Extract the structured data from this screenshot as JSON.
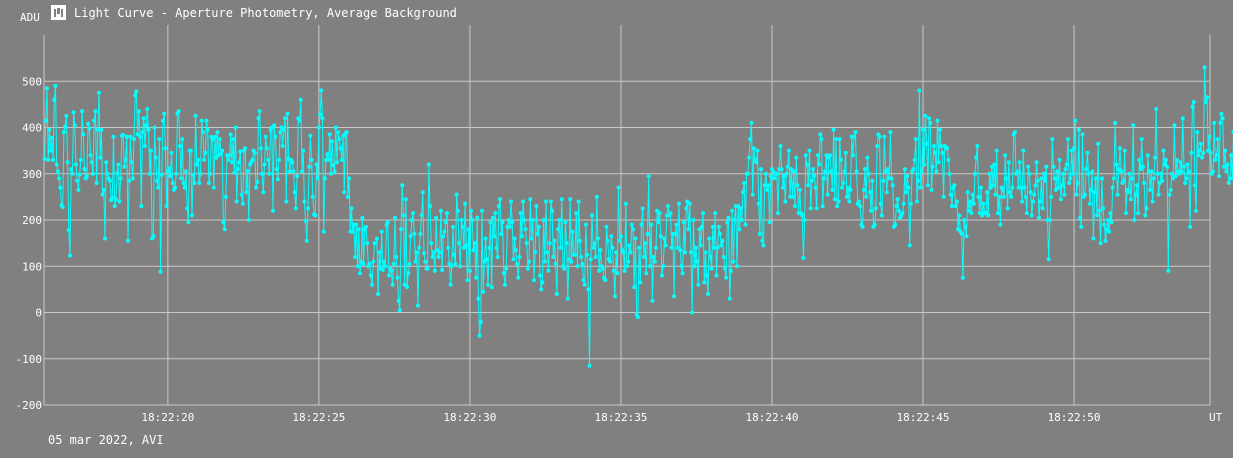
{
  "window": {
    "title": "Light Curve - Aperture Photometry, Average Background",
    "icon": "chart-window-icon",
    "footer": "05 mar 2022, AVI"
  },
  "colors": {
    "background": "#808080",
    "grid": "#c8c8c8",
    "series": "#00ffff",
    "text": "#ffffff"
  },
  "chart_data": {
    "type": "line",
    "ylabel": "ADU",
    "xlabel": "UT",
    "ylim": [
      -200,
      600
    ],
    "yticks": [
      -200,
      -100,
      0,
      100,
      200,
      300,
      400,
      500
    ],
    "xlim_seconds": [
      15.9,
      54.5
    ],
    "xticks": [
      {
        "s": 20,
        "label": "18:22:20"
      },
      {
        "s": 25,
        "label": "18:22:25"
      },
      {
        "s": 30,
        "label": "18:22:30"
      },
      {
        "s": 35,
        "label": "18:22:35"
      },
      {
        "s": 40,
        "label": "18:22:40"
      },
      {
        "s": 45,
        "label": "18:22:45"
      },
      {
        "s": 50,
        "label": "18:22:50"
      }
    ],
    "grid": true,
    "markers": true,
    "series": [
      {
        "x_start_s": 15.92,
        "x_step_s": 0.04,
        "values": [
          332,
          415,
          485,
          330,
          395,
          350,
          378,
          330,
          460,
          490,
          320,
          305,
          290,
          270,
          232,
          228,
          390,
          402,
          425,
          325,
          178,
          123,
          310,
          300,
          433,
          405,
          320,
          285,
          265,
          298,
          330,
          435,
          385,
          310,
          290,
          295,
          408,
          398,
          340,
          325,
          300,
          415,
          435,
          280,
          395,
          475,
          335,
          395,
          255,
          265,
          160,
          325,
          300,
          290,
          285,
          243,
          248,
          380,
          230,
          245,
          301,
          320,
          240,
          290,
          382,
          384,
          315,
          330,
          380,
          155,
          285,
          380,
          325,
          290,
          375,
          470,
          478,
          385,
          435,
          380,
          230,
          390,
          420,
          360,
          405,
          440,
          395,
          300,
          350,
          160,
          165,
          400,
          335,
          285,
          270,
          375,
          88,
          298,
          415,
          430,
          355,
          230,
          305,
          312,
          295,
          345,
          280,
          265,
          270,
          300,
          430,
          435,
          360,
          290,
          375,
          280,
          270,
          305,
          225,
          195,
          350,
          350,
          210,
          298,
          280,
          425,
          320,
          330,
          280,
          300,
          415,
          390,
          330,
          345,
          415,
          395,
          280,
          300,
          380,
          375,
          270,
          380,
          335,
          390,
          340,
          375,
          343,
          350,
          195,
          180,
          250,
          340,
          330,
          340,
          385,
          325,
          375,
          302,
          400,
          240,
          310,
          325,
          348,
          255,
          235,
          350,
          355,
          260,
          306,
          200,
          320,
          325,
          330,
          350,
          345,
          270,
          282,
          420,
          435,
          355,
          300,
          260,
          320,
          380,
          355,
          330,
          300,
          395,
          400,
          220,
          405,
          380,
          310,
          288,
          330,
          390,
          400,
          360,
          395,
          420,
          240,
          430,
          332,
          305,
          330,
          325,
          305,
          260,
          225,
          295,
          420,
          415,
          460,
          305,
          350,
          240,
          198,
          155,
          225,
          315,
          382,
          330,
          250,
          212,
          210,
          320,
          290,
          400,
          428,
          480,
          420,
          175,
          290,
          330,
          342,
          330,
          385,
          300,
          370,
          318,
          305,
          400,
          325,
          390,
          375,
          355,
          330,
          382,
          260,
          388,
          390,
          250,
          290,
          175,
          225,
          175,
          190,
          120,
          190,
          100,
          180,
          85,
          110,
          205,
          105,
          180,
          185,
          150,
          100,
          105,
          80,
          60,
          110,
          150,
          150,
          160,
          40,
          130,
          95,
          175,
          92,
          110,
          100,
          190,
          195,
          80,
          95,
          90,
          60,
          105,
          205,
          120,
          75,
          25,
          5,
          180,
          275,
          210,
          60,
          245,
          55,
          85,
          105,
          165,
          200,
          215,
          170,
          110,
          130,
          15,
          140,
          170,
          210,
          260,
          128,
          110,
          95,
          95,
          320,
          230,
          150,
          120,
          130,
          90,
          205,
          135,
          120,
          130,
          220,
          92,
          165,
          175,
          195,
          215,
          140,
          105,
          60,
          100,
          185,
          125,
          105,
          255,
          220,
          150,
          100,
          200,
          185,
          140,
          235,
          145,
          70,
          180,
          90,
          220,
          200,
          135,
          150,
          75,
          205,
          30,
          -50,
          -20,
          220,
          45,
          110,
          160,
          115,
          60,
          140,
          195,
          55,
          205,
          165,
          215,
          140,
          120,
          230,
          245,
          170,
          195,
          85,
          60,
          95,
          185,
          200,
          185,
          240,
          195,
          115,
          160,
          135,
          105,
          75,
          120,
          215,
          165,
          240,
          200,
          180,
          150,
          95,
          110,
          245,
          160,
          200,
          70,
          130,
          230,
          170,
          185,
          80,
          50,
          65,
          200,
          110,
          240,
          130,
          90,
          150,
          240,
          220,
          120,
          155,
          105,
          40,
          180,
          200,
          140,
          245,
          100,
          95,
          195,
          150,
          30,
          115,
          245,
          110,
          175,
          125,
          125,
          215,
          100,
          240,
          155,
          120,
          105,
          70,
          60,
          190,
          125,
          50,
          -115,
          115,
          210,
          140,
          150,
          120,
          250,
          160,
          90,
          135,
          100,
          95,
          75,
          70,
          185,
          155,
          115,
          110,
          165,
          140,
          90,
          35,
          130,
          85,
          270,
          155,
          165,
          135,
          130,
          90,
          235,
          100,
          110,
          145,
          130,
          190,
          180,
          55,
          160,
          -5,
          -10,
          140,
          65,
          190,
          225,
          120,
          150,
          85,
          170,
          295,
          100,
          190,
          25,
          120,
          110,
          140,
          220,
          195,
          215,
          165,
          80,
          100,
          160,
          145,
          210,
          230,
          210,
          215,
          140,
          170,
          35,
          170,
          190,
          140,
          235,
          135,
          100,
          85,
          195,
          130,
          225,
          240,
          180,
          235,
          130,
          0,
          200,
          100,
          140,
          110,
          60,
          180,
          145,
          185,
          215,
          65,
          130,
          80,
          40,
          160,
          120,
          95,
          185,
          140,
          215,
          80,
          140,
          185,
          170,
          145,
          155,
          120,
          95,
          75,
          195,
          205,
          30,
          90,
          220,
          110,
          200,
          230,
          100,
          230,
          180,
          225,
          200,
          260,
          280,
          190,
          300,
          300,
          335,
          375,
          410,
          255,
          355,
          330,
          325,
          350,
          235,
          170,
          310,
          155,
          145,
          275,
          300,
          265,
          275,
          195,
          295,
          310,
          305,
          290,
          300,
          300,
          215,
          310,
          360,
          310,
          270,
          295,
          240,
          300,
          315,
          350,
          250,
          310,
          250,
          305,
          230,
          335,
          275,
          215,
          265,
          215,
          210,
          118,
          200,
          340,
          320,
          275,
          350,
          225,
          285,
          310,
          295,
          270,
          225,
          340,
          320,
          385,
          375,
          230,
          290,
          305,
          340,
          255,
          335,
          340,
          305,
          265,
          395,
          245,
          375,
          230,
          240,
          375,
          330,
          270,
          280,
          305,
          345,
          250,
          270,
          240,
          265,
          380,
          340,
          380,
          390,
          305,
          235,
          240,
          230,
          190,
          185,
          265,
          310,
          250,
          335,
          300,
          260,
          220,
          285,
          185,
          190,
          225,
          360,
          385,
          380,
          235,
          210,
          285,
          380,
          305,
          260,
          310,
          290,
          390,
          290,
          275,
          185,
          190,
          230,
          245,
          220,
          205,
          210,
          215,
          235,
          310,
          260,
          295,
          270,
          145,
          235,
          305,
          310,
          330,
          375,
          240,
          285,
          480,
          270,
          305,
          395,
          320,
          425,
          365,
          275,
          420,
          410,
          265,
          315,
          360,
          345,
          305,
          415,
          325,
          395,
          360,
          345,
          250,
          360,
          355,
          355,
          330,
          300,
          255,
          230,
          270,
          275,
          230,
          240,
          180,
          210,
          175,
          170,
          75,
          200,
          185,
          165,
          260,
          220,
          240,
          215,
          255,
          235,
          300,
          335,
          360,
          250,
          215,
          270,
          210,
          235,
          215,
          215,
          260,
          210,
          300,
          270,
          315,
          275,
          320,
          255,
          350,
          215,
          250,
          190,
          270,
          265,
          250,
          340,
          290,
          225,
          325,
          260,
          250,
          270,
          385,
          390,
          300,
          305,
          270,
          325,
          270,
          240,
          350,
          270,
          250,
          215,
          315,
          300,
          260,
          210,
          240,
          255,
          275,
          325,
          285,
          205,
          240,
          290,
          225,
          300,
          285,
          315,
          200,
          115,
          200,
          250,
          375,
          315,
          290,
          265,
          305,
          270,
          330,
          245,
          275,
          300,
          255,
          310,
          320,
          375,
          280,
          290,
          350,
          300,
          355,
          415,
          255,
          280,
          395,
          205,
          185,
          385,
          250,
          255,
          310,
          345,
          300,
          235,
          265,
          305,
          160,
          260,
          290,
          210,
          365,
          220,
          150,
          290,
          225,
          190,
          155,
          180,
          200,
          175,
          215,
          195,
          270,
          290,
          410,
          320,
          255,
          310,
          355,
          305,
          280,
          285,
          350,
          215,
          265,
          260,
          300,
          245,
          290,
          405,
          200,
          255,
          275,
          215,
          330,
          310,
          375,
          315,
          280,
          210,
          225,
          340,
          305,
          265,
          305,
          240,
          290,
          335,
          440,
          300,
          255,
          280,
          300,
          285,
          350,
          320,
          330,
          315,
          90,
          255,
          265,
          300,
          290,
          405,
          295,
          330,
          305,
          300,
          325,
          305,
          420,
          315,
          280,
          290,
          320,
          305,
          185,
          345,
          445,
          455,
          275,
          220,
          390,
          340,
          350,
          365,
          335,
          345,
          530,
          455,
          465,
          350,
          380,
          345,
          300,
          305,
          410,
          330,
          340,
          375,
          295,
          410,
          430,
          420,
          315,
          350,
          305,
          320,
          280,
          290,
          340,
          290,
          390,
          220,
          325,
          380,
          285,
          400,
          210,
          85,
          225,
          260,
          330,
          280,
          330,
          210,
          70,
          140,
          300,
          320,
          255,
          405,
          395,
          325,
          260,
          195,
          305,
          240,
          290,
          375,
          290,
          210,
          265,
          300,
          290,
          295,
          310,
          255,
          375,
          280,
          330,
          225,
          110,
          350,
          420,
          400,
          425,
          410,
          440,
          420,
          220,
          345,
          290,
          400,
          175,
          385,
          330,
          280,
          285,
          290,
          405,
          195,
          310,
          235,
          280,
          295,
          225,
          200,
          300,
          170,
          220,
          335,
          290,
          420,
          215,
          185,
          360,
          340,
          385,
          440,
          380,
          400,
          420,
          445,
          265,
          310,
          300,
          340,
          310,
          365,
          300,
          265,
          290,
          275,
          300,
          255,
          345,
          340,
          380,
          295,
          310,
          190,
          190,
          270,
          310,
          275,
          255,
          370,
          320,
          240,
          335,
          435,
          215,
          290,
          320,
          285,
          280,
          305,
          330,
          360,
          345,
          320,
          300,
          245,
          355,
          205,
          110,
          195,
          285,
          330,
          350,
          315,
          300,
          275,
          250,
          305,
          120,
          270,
          260,
          310,
          250,
          250,
          410,
          220,
          160,
          340
        ]
      }
    ]
  }
}
